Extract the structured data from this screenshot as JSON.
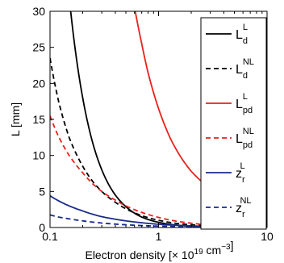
{
  "chart_data": {
    "type": "line",
    "title": "",
    "xlabel": {
      "base": "Electron density [× 10",
      "exp1": "19",
      "mid": " cm",
      "exp2": "−3",
      "end": "]"
    },
    "ylabel": "L [mm]",
    "xscale": "log",
    "xlim": [
      0.1,
      10
    ],
    "ylim": [
      0,
      30
    ],
    "x_ticks": [
      0.1,
      1,
      10
    ],
    "x_tick_labels": [
      "0.1",
      "1",
      "10"
    ],
    "y_ticks": [
      0,
      5,
      10,
      15,
      20,
      25,
      30
    ],
    "y_tick_labels": [
      "0",
      "5",
      "10",
      "15",
      "20",
      "25",
      "30"
    ],
    "grid": false,
    "legend_position": "top-right",
    "series": [
      {
        "key": "Ld_L",
        "base": "L",
        "sub": "d",
        "sup": "L",
        "color": "#000000",
        "dash": "solid",
        "x": [
          0.155,
          0.18,
          0.2,
          0.25,
          0.3,
          0.4,
          0.5,
          0.7,
          1,
          1.5,
          2,
          3,
          5,
          7,
          10
        ],
        "y": [
          30,
          22.2,
          18.0,
          11.5,
          8.0,
          4.5,
          2.9,
          1.45,
          0.72,
          0.32,
          0.18,
          0.08,
          0.03,
          0.015,
          0.007
        ]
      },
      {
        "key": "Ld_NL",
        "base": "L",
        "sub": "d",
        "sup": "NL",
        "color": "#000000",
        "dash": "dashed",
        "x": [
          0.1,
          0.12,
          0.15,
          0.2,
          0.25,
          0.3,
          0.4,
          0.5,
          0.7,
          1,
          1.5,
          2,
          3,
          5,
          7,
          10
        ],
        "y": [
          23.5,
          17.5,
          12.5,
          8.5,
          6.3,
          5.0,
          3.5,
          2.6,
          1.65,
          1.0,
          0.55,
          0.38,
          0.22,
          0.1,
          0.06,
          0.03
        ]
      },
      {
        "key": "Lpd_L",
        "base": "L",
        "sub": "pd",
        "sup": "L",
        "color": "#e8211d",
        "dash": "solid",
        "x": [
          0.61,
          0.7,
          0.8,
          1,
          1.3,
          1.6,
          2,
          3,
          4,
          5,
          7,
          10
        ],
        "y": [
          30,
          25.5,
          21.5,
          16.5,
          12.2,
          9.8,
          7.8,
          5.4,
          4.1,
          3.3,
          2.45,
          1.75
        ]
      },
      {
        "key": "Lpd_NL",
        "base": "L",
        "sub": "pd",
        "sup": "NL",
        "color": "#e8211d",
        "dash": "dashed",
        "x": [
          0.1,
          0.12,
          0.15,
          0.2,
          0.25,
          0.3,
          0.4,
          0.5,
          0.7,
          1,
          1.5,
          2,
          3,
          5,
          7,
          10
        ],
        "y": [
          15.5,
          12.6,
          10.0,
          7.6,
          6.0,
          5.0,
          3.8,
          3.0,
          2.1,
          1.4,
          0.85,
          0.6,
          0.35,
          0.17,
          0.1,
          0.06
        ]
      },
      {
        "key": "zr_L",
        "base": "z",
        "sub": "r",
        "sup": "L",
        "color": "#1a2a8c",
        "dash": "solid",
        "x": [
          0.1,
          0.12,
          0.15,
          0.2,
          0.3,
          0.4,
          0.5,
          0.7,
          1,
          1.5,
          2,
          3,
          5,
          10
        ],
        "y": [
          4.4,
          3.7,
          3.0,
          2.3,
          1.5,
          1.15,
          0.92,
          0.66,
          0.45,
          0.3,
          0.22,
          0.15,
          0.09,
          0.05
        ]
      },
      {
        "key": "zr_NL",
        "base": "z",
        "sub": "r",
        "sup": "NL",
        "color": "#1a2a8c",
        "dash": "dashed",
        "x": [
          0.1,
          0.12,
          0.15,
          0.2,
          0.3,
          0.4,
          0.5,
          0.7,
          1,
          1.5,
          2,
          3,
          5,
          10
        ],
        "y": [
          1.75,
          1.45,
          1.2,
          0.92,
          0.62,
          0.47,
          0.38,
          0.27,
          0.19,
          0.13,
          0.1,
          0.07,
          0.045,
          0.025
        ]
      }
    ]
  }
}
